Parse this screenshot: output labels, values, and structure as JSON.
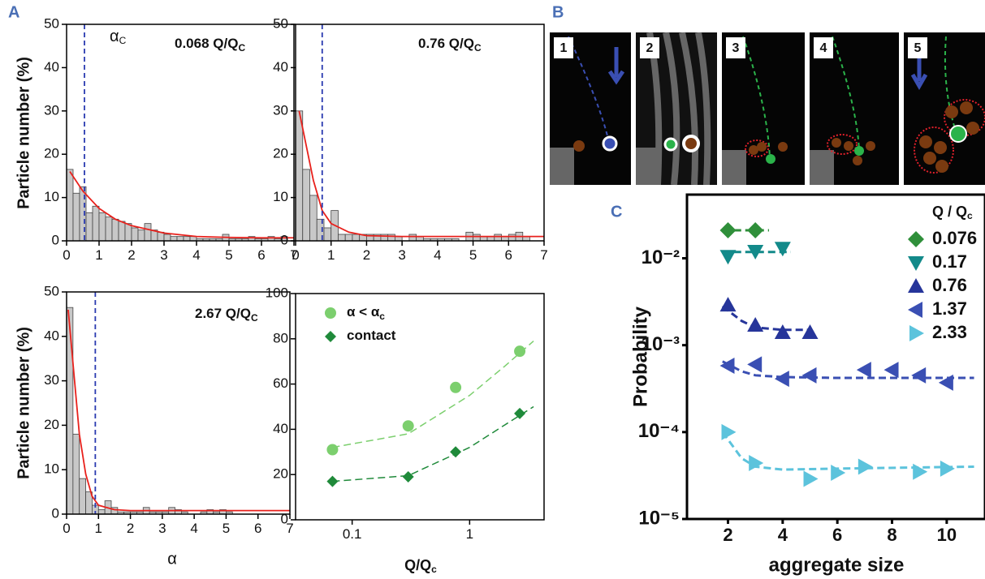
{
  "labels": [
    "A",
    "B",
    "C"
  ],
  "panel_b": {
    "frames": [
      "1",
      "2",
      "3",
      "4",
      "5"
    ]
  },
  "chart_data": [
    {
      "type": "histogram",
      "ylabel": "Particle number (%)",
      "annotations": [
        {
          "text": "α",
          "sub": "C"
        },
        {
          "text": "0.068 Q/Q",
          "sub": "C"
        }
      ],
      "bins": [
        0,
        0.2,
        0.4,
        0.6,
        0.8,
        1,
        1.2,
        1.4,
        1.6,
        1.8,
        2,
        2.2,
        2.4,
        2.6,
        2.8,
        3,
        3.2,
        3.4,
        3.6,
        3.8,
        4,
        4.2,
        4.4,
        4.6,
        4.8,
        5,
        5.2,
        5.4,
        5.6,
        5.8,
        6,
        6.2,
        6.4,
        6.6,
        6.8,
        7
      ],
      "counts": [
        16.5,
        11,
        12.5,
        6.5,
        8,
        6.5,
        5.5,
        5,
        4.5,
        4,
        3,
        2.5,
        4,
        2.5,
        2,
        1.5,
        1,
        1,
        1,
        1,
        0.5,
        0.5,
        0.5,
        0.5,
        1.5,
        0.5,
        0.5,
        0.5,
        1,
        0.5,
        0.5,
        1,
        0.5,
        1,
        0
      ],
      "color": "#c8c8c8",
      "alpha_c": 0.55,
      "fit": {
        "color": "#e8211c",
        "x": [
          0.1,
          0.5,
          1,
          1.5,
          2,
          3,
          4,
          5,
          6,
          7
        ],
        "y": [
          16,
          11.5,
          7.5,
          5,
          3.5,
          1.8,
          1,
          0.8,
          0.7,
          0.7
        ]
      },
      "xlim": [
        0,
        7
      ],
      "xticks": [
        0,
        1,
        2,
        3,
        4,
        5,
        6,
        7
      ],
      "ylim": [
        0,
        50
      ],
      "yticks": [
        0,
        10,
        20,
        30,
        40,
        50
      ]
    },
    {
      "type": "histogram",
      "annotations": [
        {
          "text": "0.76 Q/Q",
          "sub": "C"
        }
      ],
      "bins": [
        0,
        0.2,
        0.4,
        0.6,
        0.8,
        1,
        1.2,
        1.4,
        1.6,
        1.8,
        2,
        2.2,
        2.4,
        2.6,
        2.8,
        3,
        3.2,
        3.4,
        3.6,
        3.8,
        4,
        4.2,
        4.4,
        4.6,
        4.8,
        5,
        5.2,
        5.4,
        5.6,
        5.8,
        6,
        6.2,
        6.4,
        6.6,
        6.8,
        7
      ],
      "counts": [
        30,
        16.5,
        10.5,
        5,
        3,
        7,
        1.5,
        1.5,
        1.5,
        1.5,
        1.5,
        1.5,
        1.5,
        1.5,
        1,
        0,
        1.5,
        1,
        0.5,
        0.5,
        0.5,
        0.5,
        0.5,
        0,
        2,
        1.5,
        1,
        1,
        1.5,
        1,
        1.5,
        2,
        1,
        0,
        0
      ],
      "color": "#c8c8c8",
      "alpha_c": 0.75,
      "fit": {
        "color": "#e8211c",
        "x": [
          0.1,
          0.3,
          0.5,
          0.75,
          1,
          1.5,
          2,
          3,
          7
        ],
        "y": [
          30,
          22,
          14,
          7,
          4,
          2,
          1.2,
          1,
          1
        ]
      },
      "xlim": [
        0,
        7
      ],
      "xticks": [
        0,
        1,
        2,
        3,
        4,
        5,
        6,
        7
      ],
      "ylim": [
        0,
        50
      ],
      "yticks": [
        0,
        10,
        20,
        30,
        40,
        50
      ]
    },
    {
      "type": "histogram",
      "ylabel": "Particle number (%)",
      "xlabel": "α",
      "annotations": [
        {
          "text": "2.67 Q/Q",
          "sub": "C"
        }
      ],
      "bins": [
        0,
        0.2,
        0.4,
        0.6,
        0.8,
        1,
        1.2,
        1.4,
        1.6,
        1.8,
        2,
        2.2,
        2.4,
        2.6,
        2.8,
        3,
        3.2,
        3.4,
        3.6,
        3.8,
        4,
        4.2,
        4.4,
        4.6,
        4.8,
        5,
        5.2,
        5.4,
        5.6,
        5.8,
        6,
        6.2,
        6.4,
        6.6,
        6.8,
        7
      ],
      "counts": [
        46.5,
        18,
        8,
        5,
        2,
        1,
        3,
        1.5,
        0.5,
        0.5,
        0.5,
        0.5,
        1.5,
        0.5,
        0.5,
        0.5,
        1.5,
        1,
        0.5,
        0,
        0,
        0.5,
        1,
        0.5,
        1,
        0.5,
        0,
        0,
        0,
        0,
        0,
        0,
        0,
        0,
        0
      ],
      "color": "#c8c8c8",
      "alpha_c": 0.9,
      "fit": {
        "color": "#e8211c",
        "x": [
          0.05,
          0.2,
          0.4,
          0.6,
          0.8,
          1,
          1.5,
          2,
          7
        ],
        "y": [
          46,
          34,
          18,
          9,
          4,
          2,
          1,
          0.8,
          0.8
        ]
      },
      "xlim": [
        0,
        7
      ],
      "xticks": [
        0,
        1,
        2,
        3,
        4,
        5,
        6,
        7
      ],
      "ylim": [
        0,
        50
      ],
      "yticks": [
        0,
        10,
        20,
        30,
        40,
        50
      ]
    },
    {
      "type": "scatter",
      "xlabel": {
        "text": "Q/Q",
        "sub": "c"
      },
      "xlog": true,
      "series": [
        {
          "name": "α < α",
          "name_sub": "c",
          "color": "#7ccf6e",
          "marker": "circle",
          "x": [
            0.068,
            0.3,
            0.76,
            2.67
          ],
          "values": [
            31,
            41.5,
            58.5,
            74.5
          ],
          "fit": {
            "x": [
              0.068,
              0.3,
              1,
              2,
              3.5
            ],
            "y": [
              32,
              38,
              55,
              68,
              79
            ]
          }
        },
        {
          "name": "contact",
          "color": "#1f8a3a",
          "marker": "diamond",
          "x": [
            0.068,
            0.3,
            0.76,
            2.67
          ],
          "values": [
            17,
            19,
            30,
            47
          ],
          "fit": {
            "x": [
              0.068,
              0.3,
              1,
              2,
              3.5
            ],
            "y": [
              17,
              19.5,
              32,
              42,
              50
            ]
          }
        }
      ],
      "xlim": [
        0.033,
        4.3
      ],
      "xticks": [
        0.1,
        1
      ],
      "ylim": [
        0,
        100
      ],
      "yticks": [
        0,
        20,
        40,
        60,
        80,
        100
      ]
    },
    {
      "type": "scatter",
      "xlabel": "aggregate size",
      "ylabel": "Probability",
      "ylog": true,
      "legend_title": {
        "text": "Q / Q",
        "sub": "c"
      },
      "series": [
        {
          "name": "0.076",
          "color": "#2f8f3a",
          "marker": "diamond",
          "x": [
            2,
            3
          ],
          "values": [
            0.021,
            0.021
          ],
          "fit": {
            "x": [
              1.8,
              3.5
            ],
            "y": [
              0.021,
              0.021
            ]
          }
        },
        {
          "name": "0.17",
          "color": "#138a8a",
          "marker": "tri-down",
          "x": [
            2,
            3,
            4
          ],
          "values": [
            0.0105,
            0.012,
            0.013
          ],
          "fit": {
            "x": [
              1.8,
              4.3
            ],
            "y": [
              0.0118,
              0.0118
            ]
          }
        },
        {
          "name": "0.76",
          "color": "#26359a",
          "marker": "tri-up",
          "x": [
            2,
            3,
            4,
            5
          ],
          "values": [
            0.0029,
            0.0017,
            0.0014,
            0.0014
          ],
          "fit": {
            "x": [
              1.8,
              2.5,
              3,
              4,
              5
            ],
            "y": [
              0.0028,
              0.0019,
              0.0016,
              0.0015,
              0.0015
            ]
          }
        },
        {
          "name": "1.37",
          "color": "#3a4fb3",
          "marker": "tri-left",
          "x": [
            2,
            3,
            4,
            5,
            7,
            8,
            9,
            10
          ],
          "values": [
            0.00058,
            0.0006,
            0.00041,
            0.00045,
            0.00052,
            0.00052,
            0.00045,
            0.00037
          ],
          "fit": {
            "x": [
              1.8,
              2.5,
              3,
              4,
              6,
              11
            ],
            "y": [
              0.00065,
              0.0005,
              0.00045,
              0.00043,
              0.00042,
              0.00042
            ]
          }
        },
        {
          "name": "2.33",
          "color": "#5cc3dc",
          "marker": "tri-right",
          "x": [
            2,
            3,
            5,
            6,
            7,
            9,
            10
          ],
          "values": [
            0.0001,
            4.4e-05,
            2.9e-05,
            3.4e-05,
            4e-05,
            3.5e-05,
            3.8e-05
          ],
          "fit": {
            "x": [
              1.8,
              2.5,
              3,
              4,
              6,
              11
            ],
            "y": [
              0.0001,
              5e-05,
              4e-05,
              3.7e-05,
              3.8e-05,
              4e-05
            ]
          }
        }
      ],
      "xlim": [
        0.5,
        11.4
      ],
      "xticks": [
        2,
        4,
        6,
        8,
        10
      ],
      "ylim": [
        1e-05,
        0.054
      ],
      "yticks": [
        {
          "value": 1e-05,
          "label": "10⁻⁵"
        },
        {
          "value": 0.0001,
          "label": "10⁻⁴"
        },
        {
          "value": 0.001,
          "label": "10⁻³"
        },
        {
          "value": 0.01,
          "label": "10⁻²"
        }
      ]
    }
  ]
}
